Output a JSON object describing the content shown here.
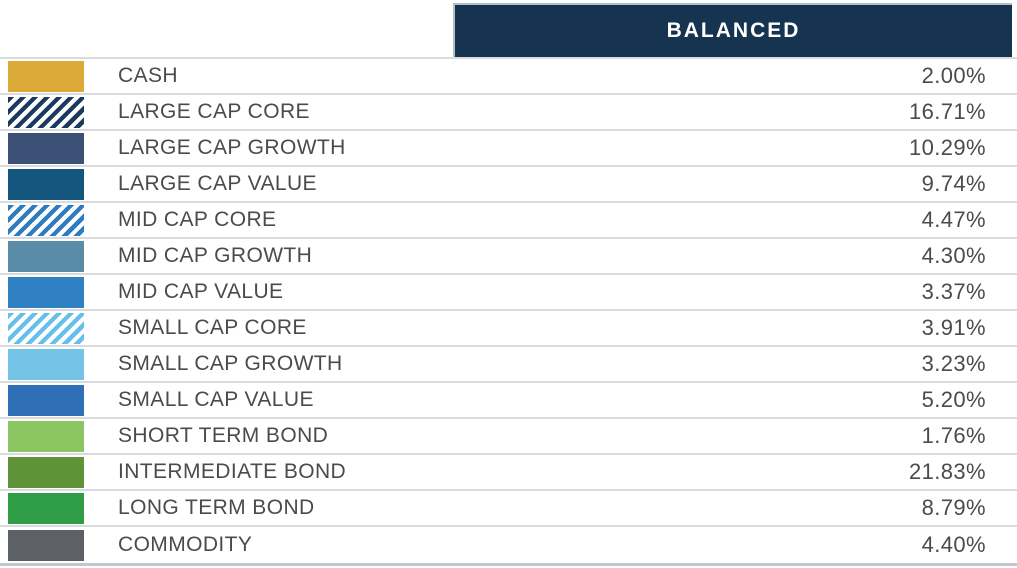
{
  "header": {
    "title": "BALANCED",
    "bg_color": "#16334F",
    "text_color": "#FFFFFF"
  },
  "table": {
    "rows": [
      {
        "label": "CASH",
        "value": "2.00%",
        "swatch": {
          "style": "solid",
          "color": "#DBAA38"
        }
      },
      {
        "label": "LARGE CAP CORE",
        "value": "16.71%",
        "swatch": {
          "style": "diagonal-stripes",
          "color": "#1B3A5F"
        }
      },
      {
        "label": "LARGE CAP GROWTH",
        "value": "10.29%",
        "swatch": {
          "style": "solid",
          "color": "#3C5075"
        }
      },
      {
        "label": "LARGE CAP VALUE",
        "value": "9.74%",
        "swatch": {
          "style": "solid",
          "color": "#15567F"
        }
      },
      {
        "label": "MID CAP CORE",
        "value": "4.47%",
        "swatch": {
          "style": "diagonal-stripes",
          "color": "#2E7CC0"
        }
      },
      {
        "label": "MID CAP GROWTH",
        "value": "4.30%",
        "swatch": {
          "style": "solid",
          "color": "#5A8CA8"
        }
      },
      {
        "label": "MID CAP VALUE",
        "value": "3.37%",
        "swatch": {
          "style": "solid",
          "color": "#2F81C4"
        }
      },
      {
        "label": "SMALL CAP CORE",
        "value": "3.91%",
        "swatch": {
          "style": "diagonal-stripes",
          "color": "#66BFE8"
        }
      },
      {
        "label": "SMALL CAP GROWTH",
        "value": "3.23%",
        "swatch": {
          "style": "solid",
          "color": "#74C4E8"
        }
      },
      {
        "label": "SMALL CAP VALUE",
        "value": "5.20%",
        "swatch": {
          "style": "solid",
          "color": "#2F6FB5"
        }
      },
      {
        "label": "SHORT TERM BOND",
        "value": "1.76%",
        "swatch": {
          "style": "solid",
          "color": "#8CC663"
        }
      },
      {
        "label": "INTERMEDIATE BOND",
        "value": "21.83%",
        "swatch": {
          "style": "solid",
          "color": "#5E9437"
        }
      },
      {
        "label": "LONG TERM BOND",
        "value": "8.79%",
        "swatch": {
          "style": "solid",
          "color": "#2F9C46"
        }
      },
      {
        "label": "COMMODITY",
        "value": "4.40%",
        "swatch": {
          "style": "solid",
          "color": "#5D6065"
        }
      }
    ],
    "separator_color": "#D9DBDD",
    "bottom_border_color": "#C4C7C9",
    "text_color": "#4A4B4D"
  },
  "chart_data": {
    "type": "table",
    "title": "BALANCED",
    "categories": [
      "CASH",
      "LARGE CAP CORE",
      "LARGE CAP GROWTH",
      "LARGE CAP VALUE",
      "MID CAP CORE",
      "MID CAP GROWTH",
      "MID CAP VALUE",
      "SMALL CAP CORE",
      "SMALL CAP GROWTH",
      "SMALL CAP VALUE",
      "SHORT TERM BOND",
      "INTERMEDIATE BOND",
      "LONG TERM BOND",
      "COMMODITY"
    ],
    "values": [
      2.0,
      16.71,
      10.29,
      9.74,
      4.47,
      4.3,
      3.37,
      3.91,
      3.23,
      5.2,
      1.76,
      21.83,
      8.79,
      4.4
    ],
    "value_format": "percent",
    "legend_colors": [
      "#DBAA38",
      "#1B3A5F",
      "#3C5075",
      "#15567F",
      "#2E7CC0",
      "#5A8CA8",
      "#2F81C4",
      "#66BFE8",
      "#74C4E8",
      "#2F6FB5",
      "#8CC663",
      "#5E9437",
      "#2F9C46",
      "#5D6065"
    ],
    "legend_patterns": [
      "solid",
      "diagonal-stripes",
      "solid",
      "solid",
      "diagonal-stripes",
      "solid",
      "solid",
      "diagonal-stripes",
      "solid",
      "solid",
      "solid",
      "solid",
      "solid",
      "solid"
    ]
  }
}
